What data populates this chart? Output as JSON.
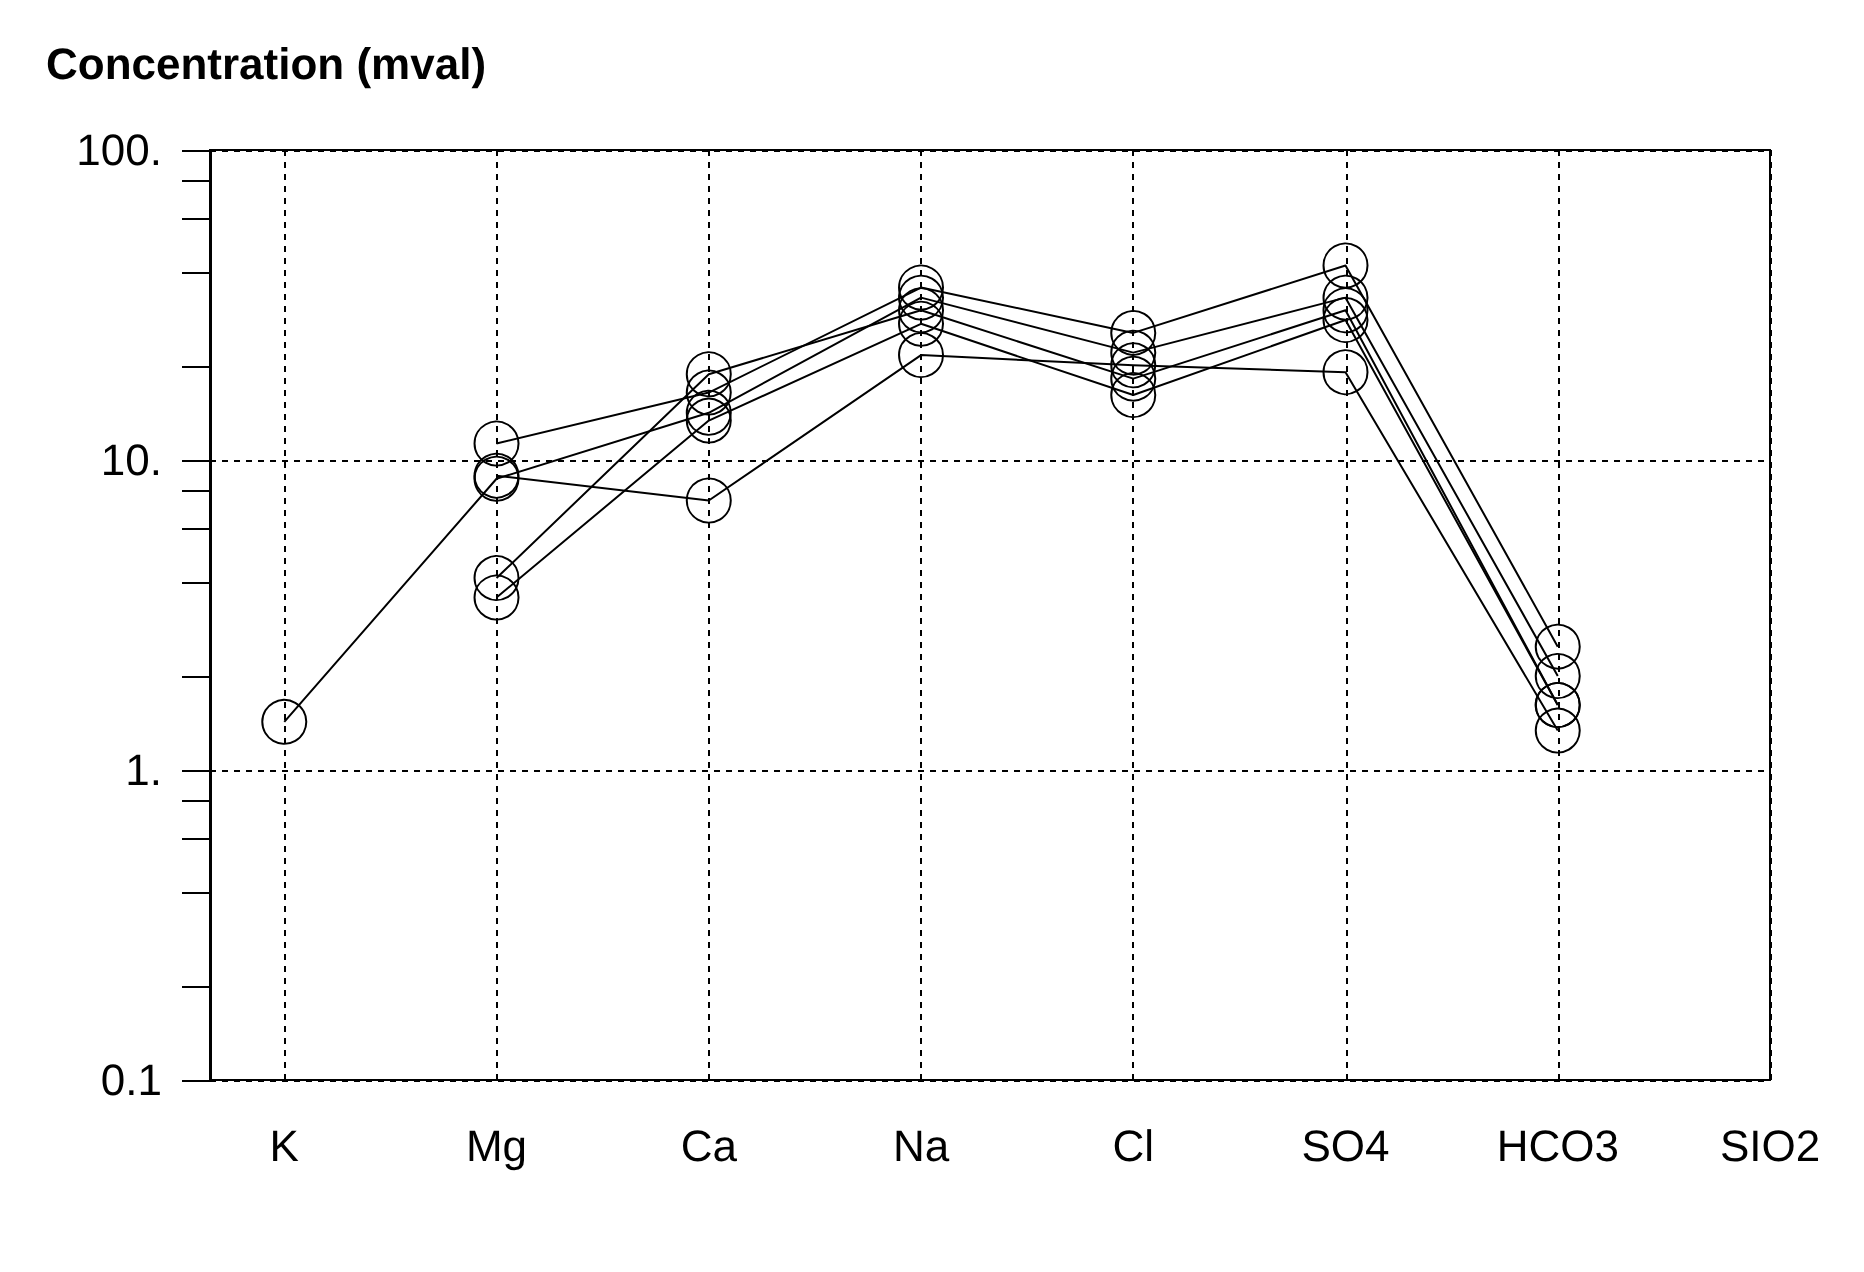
{
  "chart_data": {
    "type": "line",
    "title": "Concentration (mval)",
    "categories": [
      "K",
      "Mg",
      "Ca",
      "Na",
      "Cl",
      "SO4",
      "HCO3",
      "SIO2"
    ],
    "series": [
      {
        "color": "#000000",
        "values": [
          1.43,
          8.7,
          14.2,
          33.4,
          22.2,
          33.4,
          2.01,
          null
        ]
      },
      {
        "color": "#000000",
        "values": [
          null,
          8.9,
          7.4,
          21.8,
          20.2,
          19.2,
          1.34,
          null
        ]
      },
      {
        "color": "#000000",
        "values": [
          null,
          11.3,
          16.5,
          36,
          25.7,
          42.4,
          2.5,
          null
        ]
      },
      {
        "color": "#000000",
        "values": [
          null,
          4.16,
          18.9,
          30.4,
          18.3,
          30.4,
          1.62,
          null
        ]
      },
      {
        "color": "#000000",
        "values": [
          null,
          3.6,
          13.4,
          27.5,
          16.2,
          28.3,
          1.62,
          null
        ]
      }
    ],
    "log": "y",
    "ylim": [
      0.1,
      100
    ],
    "yticks": [
      0.1,
      {
        "value": 0.2,
        "label": null
      },
      {
        "value": 0.4,
        "label": null
      },
      {
        "value": 0.6,
        "label": null
      },
      {
        "value": 0.8,
        "label": null
      },
      {
        "value": 1,
        "label": "1."
      },
      {
        "value": 2,
        "label": null
      },
      {
        "value": 4,
        "label": null
      },
      {
        "value": 6,
        "label": null
      },
      {
        "value": 8,
        "label": null
      },
      {
        "value": 10,
        "label": "10."
      },
      {
        "value": 20,
        "label": null
      },
      {
        "value": 40,
        "label": null
      },
      {
        "value": 60,
        "label": null
      },
      {
        "value": 80,
        "label": null
      },
      {
        "value": 100,
        "label": "100."
      }
    ],
    "grid": true,
    "marker": "circle",
    "line_style": "solid"
  }
}
